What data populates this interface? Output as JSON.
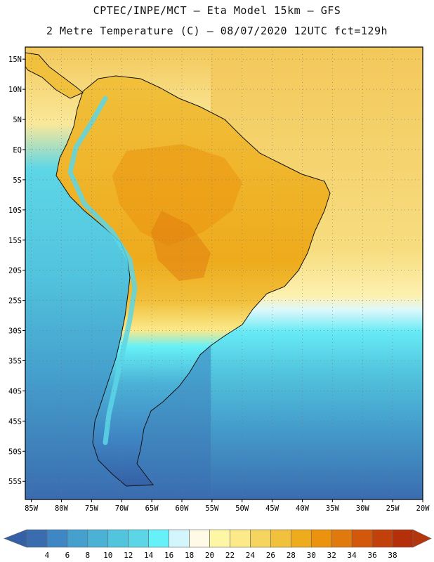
{
  "header": {
    "line1": "CPTEC/INPE/MCT –  Eta Model 15km – GFS",
    "line2": "2 Metre Temperature (C) – 08/07/2020 12UTC fct=129h"
  },
  "map": {
    "lat_labels": [
      "15N",
      "10N",
      "5N",
      "EQ",
      "5S",
      "10S",
      "15S",
      "20S",
      "25S",
      "30S",
      "35S",
      "40S",
      "45S",
      "50S",
      "55S"
    ],
    "lon_labels": [
      "85W",
      "80W",
      "75W",
      "70W",
      "65W",
      "60W",
      "55W",
      "50W",
      "45W",
      "40W",
      "35W",
      "30W",
      "25W",
      "20W"
    ],
    "lat_values": [
      15,
      10,
      5,
      0,
      -5,
      -10,
      -15,
      -20,
      -25,
      -30,
      -35,
      -40,
      -45,
      -50,
      -55
    ],
    "lon_values": [
      -85,
      -80,
      -75,
      -70,
      -65,
      -60,
      -55,
      -50,
      -45,
      -40,
      -35,
      -30,
      -25,
      -20
    ],
    "lat_range": [
      -58,
      17
    ],
    "lon_range": [
      -86,
      -20
    ]
  },
  "colorbar": {
    "labels": [
      "4",
      "6",
      "8",
      "10",
      "12",
      "14",
      "16",
      "18",
      "20",
      "22",
      "24",
      "26",
      "28",
      "30",
      "32",
      "34",
      "36",
      "38"
    ],
    "colors": [
      "#3a6cb0",
      "#3f86c4",
      "#45a0cd",
      "#4bb2d6",
      "#52c4de",
      "#5cd6e6",
      "#66f0f7",
      "#d2f6fb",
      "#fefae6",
      "#fdf6a4",
      "#fbe98a",
      "#f6d460",
      "#f1c03c",
      "#eeab1c",
      "#eb930e",
      "#e07a0d",
      "#d3580c",
      "#c2400a",
      "#b3300a"
    ],
    "under_color": "#3560a6",
    "over_color": "#b5350d"
  }
}
